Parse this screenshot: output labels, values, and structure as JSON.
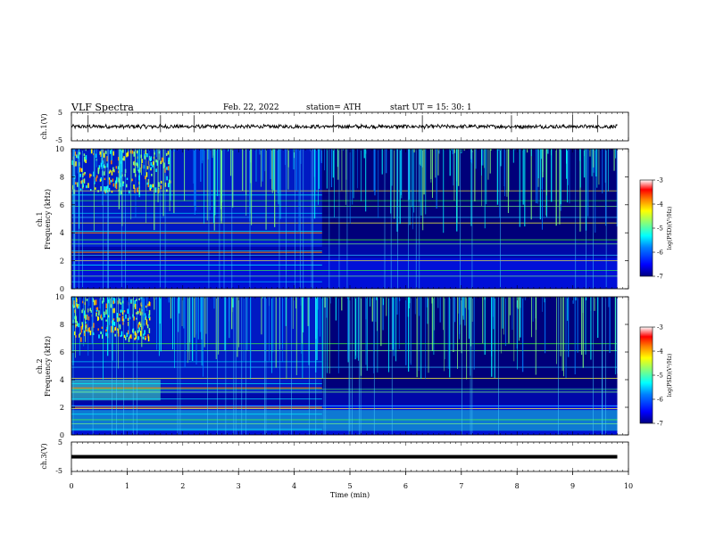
{
  "header": {
    "title": "VLF  Spectra",
    "date": "Feb. 22, 2022",
    "station": "station= ATH",
    "start_ut": "start  UT  =   15: 30: 1"
  },
  "chart_data": [
    {
      "type": "line",
      "name": "ch1-waveform",
      "ylabel": "ch.1(V)",
      "ylim": [
        -5,
        5
      ],
      "yticks": [
        "5",
        "-5"
      ],
      "x_range_min": [
        0,
        9.8
      ],
      "approx_level": 0
    },
    {
      "type": "heatmap",
      "name": "ch1-spectrogram",
      "ylabel_lines": [
        "ch.1",
        "Frequency  (kHz)"
      ],
      "ylim": [
        0,
        10
      ],
      "yticks": [
        "10",
        "8",
        "6",
        "4",
        "2",
        "0"
      ],
      "x_range_min": [
        0,
        9.8
      ],
      "colorbar": {
        "label": "log(PSD)(V²/Hz)",
        "range": [
          -7,
          -3
        ],
        "ticks": [
          "-3",
          "-4",
          "-5",
          "-6",
          "-7"
        ]
      }
    },
    {
      "type": "heatmap",
      "name": "ch2-spectrogram",
      "ylabel_lines": [
        "ch.2",
        "Frequency  (kHz)"
      ],
      "ylim": [
        0,
        10
      ],
      "yticks": [
        "10",
        "8",
        "6",
        "4",
        "2",
        "0"
      ],
      "x_range_min": [
        0,
        9.8
      ],
      "colorbar": {
        "label": "log(PSD)(V²/Hz)",
        "range": [
          -7,
          -3
        ],
        "ticks": [
          "-3",
          "-4",
          "-5",
          "-6",
          "-7"
        ]
      }
    },
    {
      "type": "line",
      "name": "ch3-waveform",
      "ylabel": "ch.3(V)",
      "ylim": [
        -5,
        5
      ],
      "yticks": [
        "5",
        "-5"
      ],
      "x_range_min": [
        0,
        9.8
      ],
      "approx_level": 0
    }
  ],
  "xaxis": {
    "label": "Time  (min)",
    "range": [
      0,
      10
    ],
    "ticks": [
      "0",
      "1",
      "2",
      "3",
      "4",
      "5",
      "6",
      "7",
      "8",
      "9",
      "10"
    ]
  },
  "colors": {
    "colormap": [
      "#00007f",
      "#0000ff",
      "#007fff",
      "#00ffff",
      "#7fff7f",
      "#ffff00",
      "#ff7f00",
      "#ff0000",
      "#ffffff"
    ]
  }
}
